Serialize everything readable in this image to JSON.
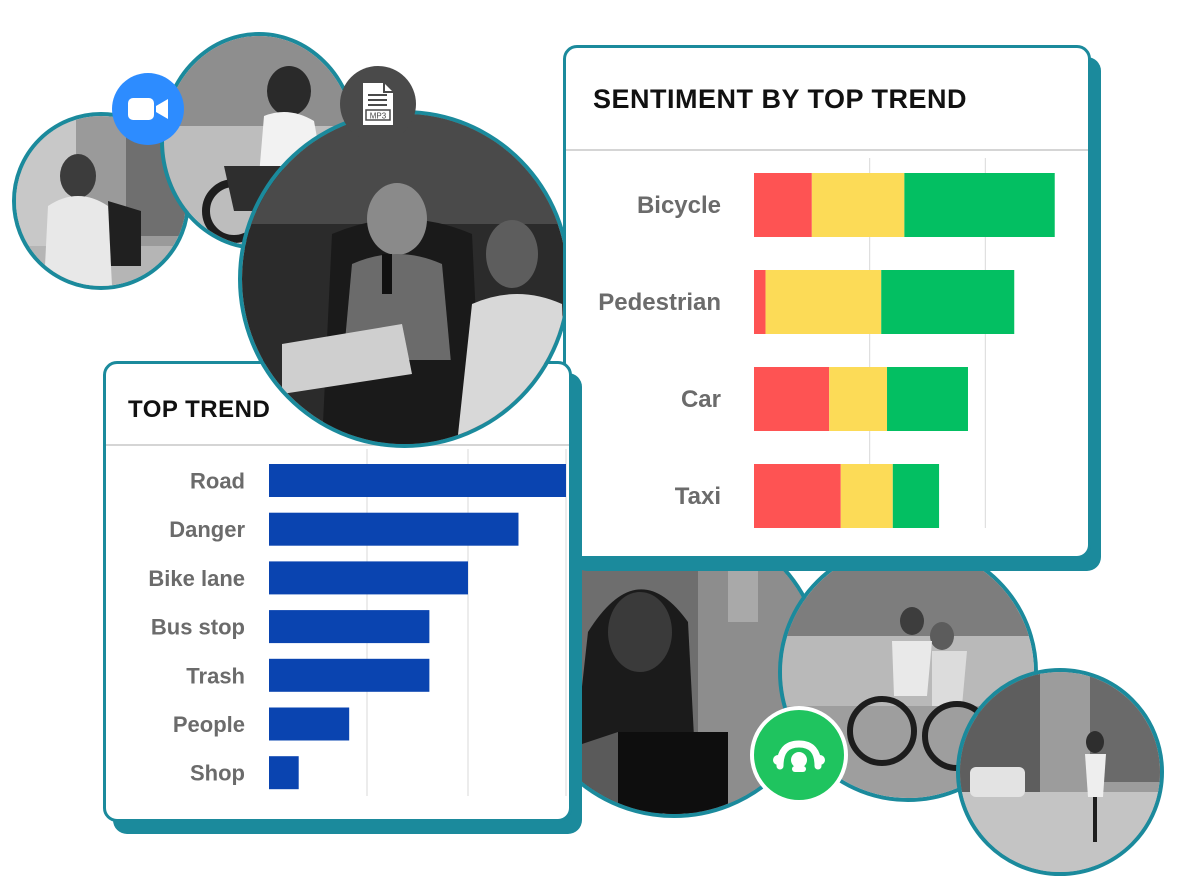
{
  "top_trend_card": {
    "title": "TOP TREND"
  },
  "sentiment_card": {
    "title": "SENTIMENT BY TOP TREND"
  },
  "file_badge": {
    "label": "MP3"
  },
  "colors": {
    "accent": "#1b8a9c",
    "bar_blue": "#0a44b0",
    "negative": "#fe5353",
    "neutral": "#fcdb57",
    "positive": "#03bf62",
    "video_badge": "#2d8cff",
    "monkey_badge": "#1fc45f"
  },
  "chart_data": [
    {
      "type": "bar",
      "orientation": "horizontal",
      "title": "TOP TREND",
      "categories": [
        "Road",
        "Danger",
        "Bike lane",
        "Bus stop",
        "Trash",
        "People",
        "Shop"
      ],
      "values": [
        100,
        84,
        67,
        54,
        54,
        27,
        10
      ],
      "xlim": [
        0,
        100
      ],
      "grid": true
    },
    {
      "type": "bar",
      "orientation": "horizontal",
      "stacked": true,
      "title": "SENTIMENT BY TOP TREND",
      "categories": [
        "Bicycle",
        "Pedestrian",
        "Car",
        "Taxi"
      ],
      "series": [
        {
          "values": [
            10,
            2,
            13,
            15
          ]
        },
        {
          "values": [
            16,
            20,
            10,
            9
          ]
        },
        {
          "values": [
            26,
            23,
            14,
            8
          ]
        }
      ],
      "xlim": [
        0,
        60
      ],
      "grid": true
    }
  ]
}
